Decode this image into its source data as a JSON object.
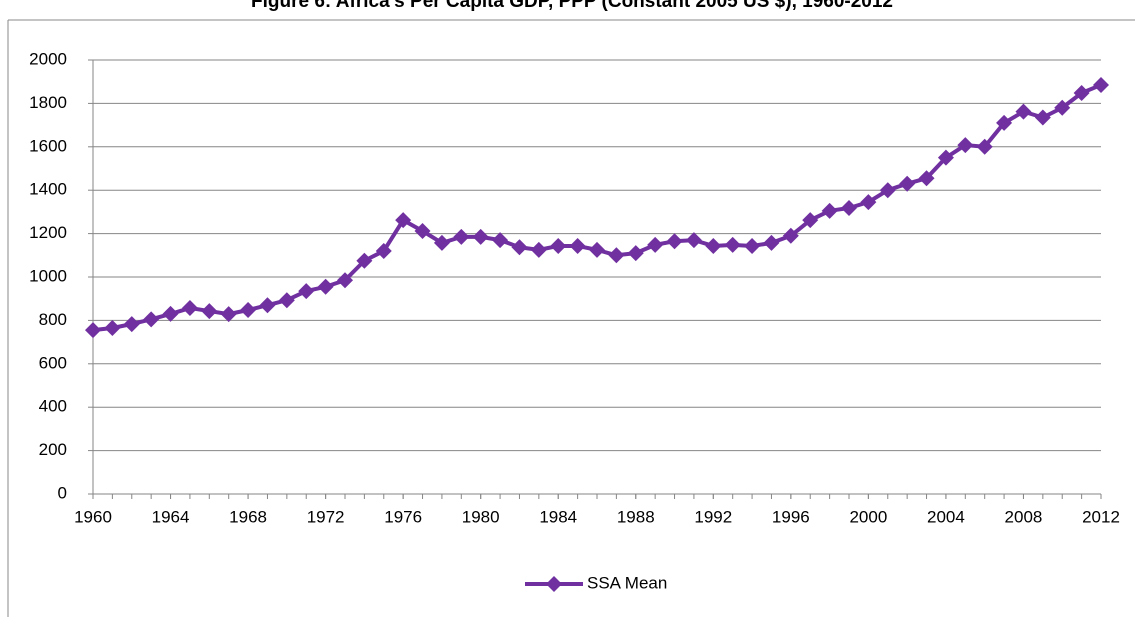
{
  "chart_data": {
    "type": "line",
    "title": "Figure 6: Africa's Per Capita GDP, PPP (Constant 2005 US $), 1960-2012",
    "x": [
      1960,
      1961,
      1962,
      1963,
      1964,
      1965,
      1966,
      1967,
      1968,
      1969,
      1970,
      1971,
      1972,
      1973,
      1974,
      1975,
      1976,
      1977,
      1978,
      1979,
      1980,
      1981,
      1982,
      1983,
      1984,
      1985,
      1986,
      1987,
      1988,
      1989,
      1990,
      1991,
      1992,
      1993,
      1994,
      1995,
      1996,
      1997,
      1998,
      1999,
      2000,
      2001,
      2002,
      2003,
      2004,
      2005,
      2006,
      2007,
      2008,
      2009,
      2010,
      2011,
      2012
    ],
    "series": [
      {
        "name": "SSA Mean",
        "color": "#7030a0",
        "values": [
          755,
          765,
          783,
          805,
          830,
          857,
          843,
          829,
          848,
          870,
          893,
          935,
          955,
          985,
          1075,
          1120,
          1262,
          1212,
          1157,
          1185,
          1185,
          1170,
          1137,
          1125,
          1143,
          1143,
          1125,
          1100,
          1110,
          1148,
          1165,
          1170,
          1143,
          1148,
          1143,
          1157,
          1190,
          1262,
          1305,
          1318,
          1345,
          1400,
          1430,
          1455,
          1550,
          1608,
          1600,
          1710,
          1762,
          1735,
          1780,
          1848,
          1885
        ]
      }
    ],
    "xlim": [
      1960,
      2012
    ],
    "xticks": [
      1960,
      1964,
      1968,
      1972,
      1976,
      1980,
      1984,
      1988,
      1992,
      1996,
      2000,
      2004,
      2008,
      2012
    ],
    "ylim": [
      0,
      2000
    ],
    "yticks": [
      0,
      200,
      400,
      600,
      800,
      1000,
      1200,
      1400,
      1600,
      1800,
      2000
    ],
    "grid": true,
    "legend": "bottom"
  }
}
